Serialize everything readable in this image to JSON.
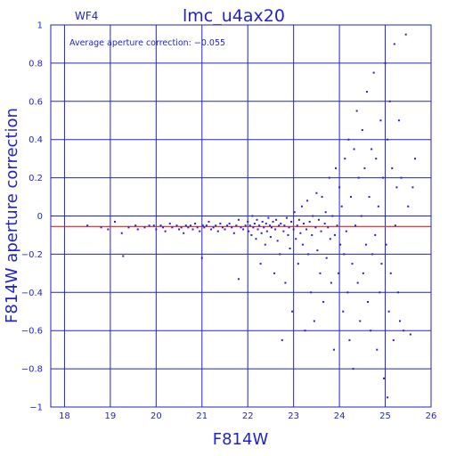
{
  "chart_data": {
    "type": "scatter",
    "title": "lmc_u4ax20",
    "panel_label": "WF4",
    "xlabel": "F814W",
    "ylabel": "F814W aperture correction",
    "annotation": "Average aperture correction: −0.055",
    "xlim": [
      17.7,
      26
    ],
    "ylim": [
      -1,
      1
    ],
    "x_ticks": [
      18,
      19,
      20,
      21,
      22,
      23,
      24,
      25,
      26
    ],
    "x_tick_labels": [
      "18",
      "19",
      "20",
      "21",
      "22",
      "23",
      "24",
      "25",
      "26"
    ],
    "y_ticks": [
      -1,
      -0.8,
      -0.6,
      -0.4,
      -0.2,
      0,
      0.2,
      0.4,
      0.6,
      0.8,
      1
    ],
    "y_tick_labels": [
      "−1",
      "−0.8",
      "−0.6",
      "−0.4",
      "−0.2",
      "0",
      "0.2",
      "0.4",
      "0.6",
      "0.8",
      "1"
    ],
    "grid": true,
    "reference_line": {
      "y": -0.055,
      "color": "#e02020"
    },
    "colors": {
      "axes": "#2323c8",
      "points": "#2323c8",
      "reference": "#e02020",
      "background": "#ffffff"
    },
    "points": [
      [
        18.5,
        -0.05
      ],
      [
        18.8,
        -0.06
      ],
      [
        18.95,
        -0.07
      ],
      [
        19.1,
        -0.03
      ],
      [
        19.25,
        -0.09
      ],
      [
        19.28,
        -0.21
      ],
      [
        19.4,
        -0.06
      ],
      [
        19.55,
        -0.05
      ],
      [
        19.6,
        -0.07
      ],
      [
        19.75,
        -0.06
      ],
      [
        19.85,
        -0.05
      ],
      [
        19.95,
        -0.05
      ],
      [
        20.0,
        -0.07
      ],
      [
        20.1,
        -0.05
      ],
      [
        20.15,
        -0.06
      ],
      [
        20.2,
        -0.08
      ],
      [
        20.3,
        -0.04
      ],
      [
        20.35,
        -0.06
      ],
      [
        20.45,
        -0.05
      ],
      [
        20.5,
        -0.07
      ],
      [
        20.55,
        -0.06
      ],
      [
        20.6,
        -0.09
      ],
      [
        20.65,
        -0.05
      ],
      [
        20.7,
        -0.06
      ],
      [
        20.75,
        -0.05
      ],
      [
        20.8,
        -0.07
      ],
      [
        20.85,
        -0.04
      ],
      [
        20.9,
        -0.06
      ],
      [
        20.95,
        -0.08
      ],
      [
        21.0,
        -0.22
      ],
      [
        21.02,
        -0.05
      ],
      [
        21.05,
        -0.06
      ],
      [
        21.1,
        -0.05
      ],
      [
        21.15,
        -0.03
      ],
      [
        21.2,
        -0.07
      ],
      [
        21.25,
        -0.06
      ],
      [
        21.3,
        -0.05
      ],
      [
        21.35,
        -0.08
      ],
      [
        21.4,
        -0.04
      ],
      [
        21.45,
        -0.06
      ],
      [
        21.5,
        -0.07
      ],
      [
        21.55,
        -0.05
      ],
      [
        21.6,
        -0.04
      ],
      [
        21.65,
        -0.06
      ],
      [
        21.7,
        -0.09
      ],
      [
        21.75,
        -0.05
      ],
      [
        21.8,
        -0.02
      ],
      [
        21.8,
        -0.33
      ],
      [
        21.85,
        -0.06
      ],
      [
        21.9,
        -0.07
      ],
      [
        21.95,
        -0.05
      ],
      [
        22.0,
        -0.03
      ],
      [
        22.02,
        -0.08
      ],
      [
        22.05,
        -0.05
      ],
      [
        22.08,
        -0.1
      ],
      [
        22.1,
        0.0
      ],
      [
        22.12,
        -0.06
      ],
      [
        22.15,
        -0.04
      ],
      [
        22.18,
        -0.12
      ],
      [
        22.2,
        -0.02
      ],
      [
        22.22,
        -0.07
      ],
      [
        22.25,
        -0.05
      ],
      [
        22.28,
        -0.25
      ],
      [
        22.3,
        -0.09
      ],
      [
        22.32,
        -0.03
      ],
      [
        22.35,
        -0.06
      ],
      [
        22.38,
        -0.15
      ],
      [
        22.4,
        -0.04
      ],
      [
        22.42,
        -0.08
      ],
      [
        22.45,
        -0.01
      ],
      [
        22.48,
        -0.05
      ],
      [
        22.5,
        -0.11
      ],
      [
        22.52,
        -0.06
      ],
      [
        22.55,
        -0.03
      ],
      [
        22.58,
        -0.3
      ],
      [
        22.6,
        -0.07
      ],
      [
        22.62,
        -0.02
      ],
      [
        22.65,
        -0.13
      ],
      [
        22.68,
        -0.05
      ],
      [
        22.7,
        -0.2
      ],
      [
        22.72,
        -0.04
      ],
      [
        22.75,
        -0.65
      ],
      [
        22.78,
        -0.08
      ],
      [
        22.8,
        -0.05
      ],
      [
        22.82,
        -0.35
      ],
      [
        22.85,
        -0.01
      ],
      [
        22.88,
        -0.1
      ],
      [
        22.9,
        -0.06
      ],
      [
        22.92,
        -0.17
      ],
      [
        22.95,
        -0.03
      ],
      [
        22.97,
        -0.5
      ],
      [
        23.0,
        -0.07
      ],
      [
        23.02,
        0.02
      ],
      [
        23.05,
        -0.12
      ],
      [
        23.08,
        -0.05
      ],
      [
        23.1,
        -0.25
      ],
      [
        23.12,
        -0.02
      ],
      [
        23.15,
        -0.09
      ],
      [
        23.18,
        0.05
      ],
      [
        23.2,
        -0.15
      ],
      [
        23.22,
        -0.04
      ],
      [
        23.25,
        -0.6
      ],
      [
        23.28,
        -0.07
      ],
      [
        23.3,
        0.08
      ],
      [
        23.32,
        -0.2
      ],
      [
        23.35,
        -0.03
      ],
      [
        23.38,
        -0.4
      ],
      [
        23.4,
        -0.1
      ],
      [
        23.42,
        0.0
      ],
      [
        23.45,
        -0.55
      ],
      [
        23.48,
        -0.06
      ],
      [
        23.5,
        0.12
      ],
      [
        23.52,
        -0.18
      ],
      [
        23.55,
        -0.02
      ],
      [
        23.58,
        -0.3
      ],
      [
        23.6,
        -0.08
      ],
      [
        23.62,
        0.1
      ],
      [
        23.65,
        -0.45
      ],
      [
        23.68,
        -0.04
      ],
      [
        23.7,
        0.02
      ],
      [
        23.72,
        -0.22
      ],
      [
        23.75,
        -0.06
      ],
      [
        23.78,
        0.2
      ],
      [
        23.8,
        -0.12
      ],
      [
        23.82,
        -0.35
      ],
      [
        23.85,
        0.0
      ],
      [
        23.88,
        -0.7
      ],
      [
        23.9,
        -0.1
      ],
      [
        23.92,
        0.25
      ],
      [
        23.95,
        -0.05
      ],
      [
        23.98,
        -0.3
      ],
      [
        24.0,
        0.15
      ],
      [
        24.02,
        -0.15
      ],
      [
        24.05,
        0.05
      ],
      [
        24.08,
        -0.5
      ],
      [
        24.1,
        -0.2
      ],
      [
        24.12,
        0.3
      ],
      [
        24.15,
        -0.08
      ],
      [
        24.18,
        -0.4
      ],
      [
        24.2,
        0.4
      ],
      [
        24.22,
        -0.65
      ],
      [
        24.25,
        0.1
      ],
      [
        24.28,
        -0.25
      ],
      [
        24.3,
        -0.8
      ],
      [
        24.32,
        0.35
      ],
      [
        24.35,
        -0.05
      ],
      [
        24.38,
        0.55
      ],
      [
        24.4,
        -0.35
      ],
      [
        24.42,
        0.2
      ],
      [
        24.45,
        -0.55
      ],
      [
        24.48,
        0.0
      ],
      [
        24.5,
        0.45
      ],
      [
        24.52,
        -0.3
      ],
      [
        24.55,
        0.25
      ],
      [
        24.58,
        -0.15
      ],
      [
        24.6,
        0.65
      ],
      [
        24.62,
        -0.45
      ],
      [
        24.65,
        0.1
      ],
      [
        24.68,
        -0.6
      ],
      [
        24.7,
        0.35
      ],
      [
        24.72,
        -0.2
      ],
      [
        24.75,
        0.75
      ],
      [
        24.78,
        -0.1
      ],
      [
        24.8,
        0.3
      ],
      [
        24.82,
        -0.7
      ],
      [
        24.85,
        0.05
      ],
      [
        24.88,
        -0.4
      ],
      [
        24.9,
        0.5
      ],
      [
        24.92,
        -0.25
      ],
      [
        24.95,
        0.2
      ],
      [
        24.97,
        -0.85
      ],
      [
        25.0,
        0.8
      ],
      [
        25.02,
        -0.15
      ],
      [
        25.05,
        0.4
      ],
      [
        25.08,
        -0.5
      ],
      [
        25.1,
        0.6
      ],
      [
        25.12,
        -0.3
      ],
      [
        25.15,
        0.25
      ],
      [
        25.18,
        -0.65
      ],
      [
        25.2,
        0.9
      ],
      [
        25.22,
        -0.05
      ],
      [
        25.25,
        0.15
      ],
      [
        25.28,
        -0.4
      ],
      [
        25.3,
        0.5
      ],
      [
        25.32,
        -0.55
      ],
      [
        25.35,
        0.2
      ],
      [
        25.4,
        -0.6
      ],
      [
        25.45,
        0.95
      ],
      [
        25.5,
        0.05
      ],
      [
        25.55,
        -0.62
      ],
      [
        25.6,
        0.15
      ],
      [
        25.65,
        0.3
      ],
      [
        25.05,
        -0.95
      ]
    ]
  }
}
